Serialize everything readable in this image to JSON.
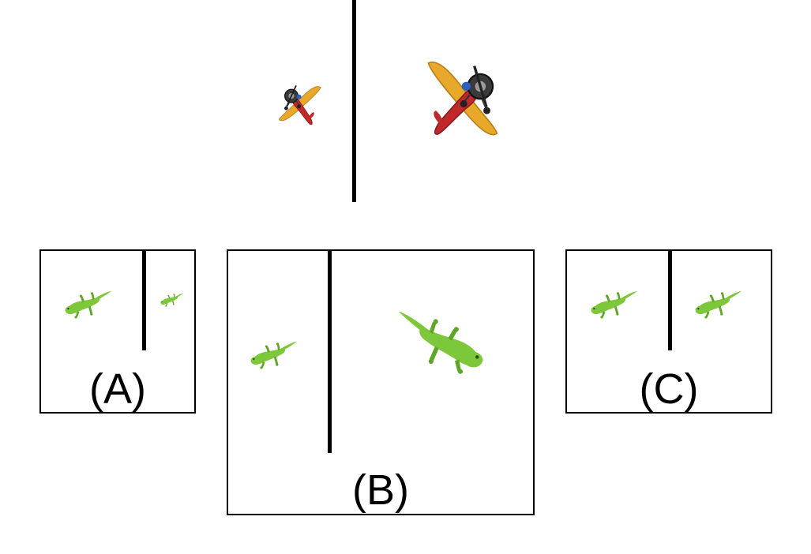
{
  "prompt": {
    "before_object": "toy-airplane",
    "after_object": "toy-airplane"
  },
  "options": [
    {
      "label": "(A)",
      "left_object": "lizard",
      "right_object": "lizard"
    },
    {
      "label": "(B)",
      "left_object": "lizard",
      "right_object": "lizard"
    },
    {
      "label": "(C)",
      "left_object": "lizard",
      "right_object": "lizard"
    }
  ],
  "colors": {
    "airplane_wing": "#e8a82a",
    "airplane_body": "#c0282a",
    "airplane_engine": "#3a3a3a",
    "lizard": "#7dc83a",
    "lizard_dark": "#5fa528",
    "line": "#000000"
  }
}
